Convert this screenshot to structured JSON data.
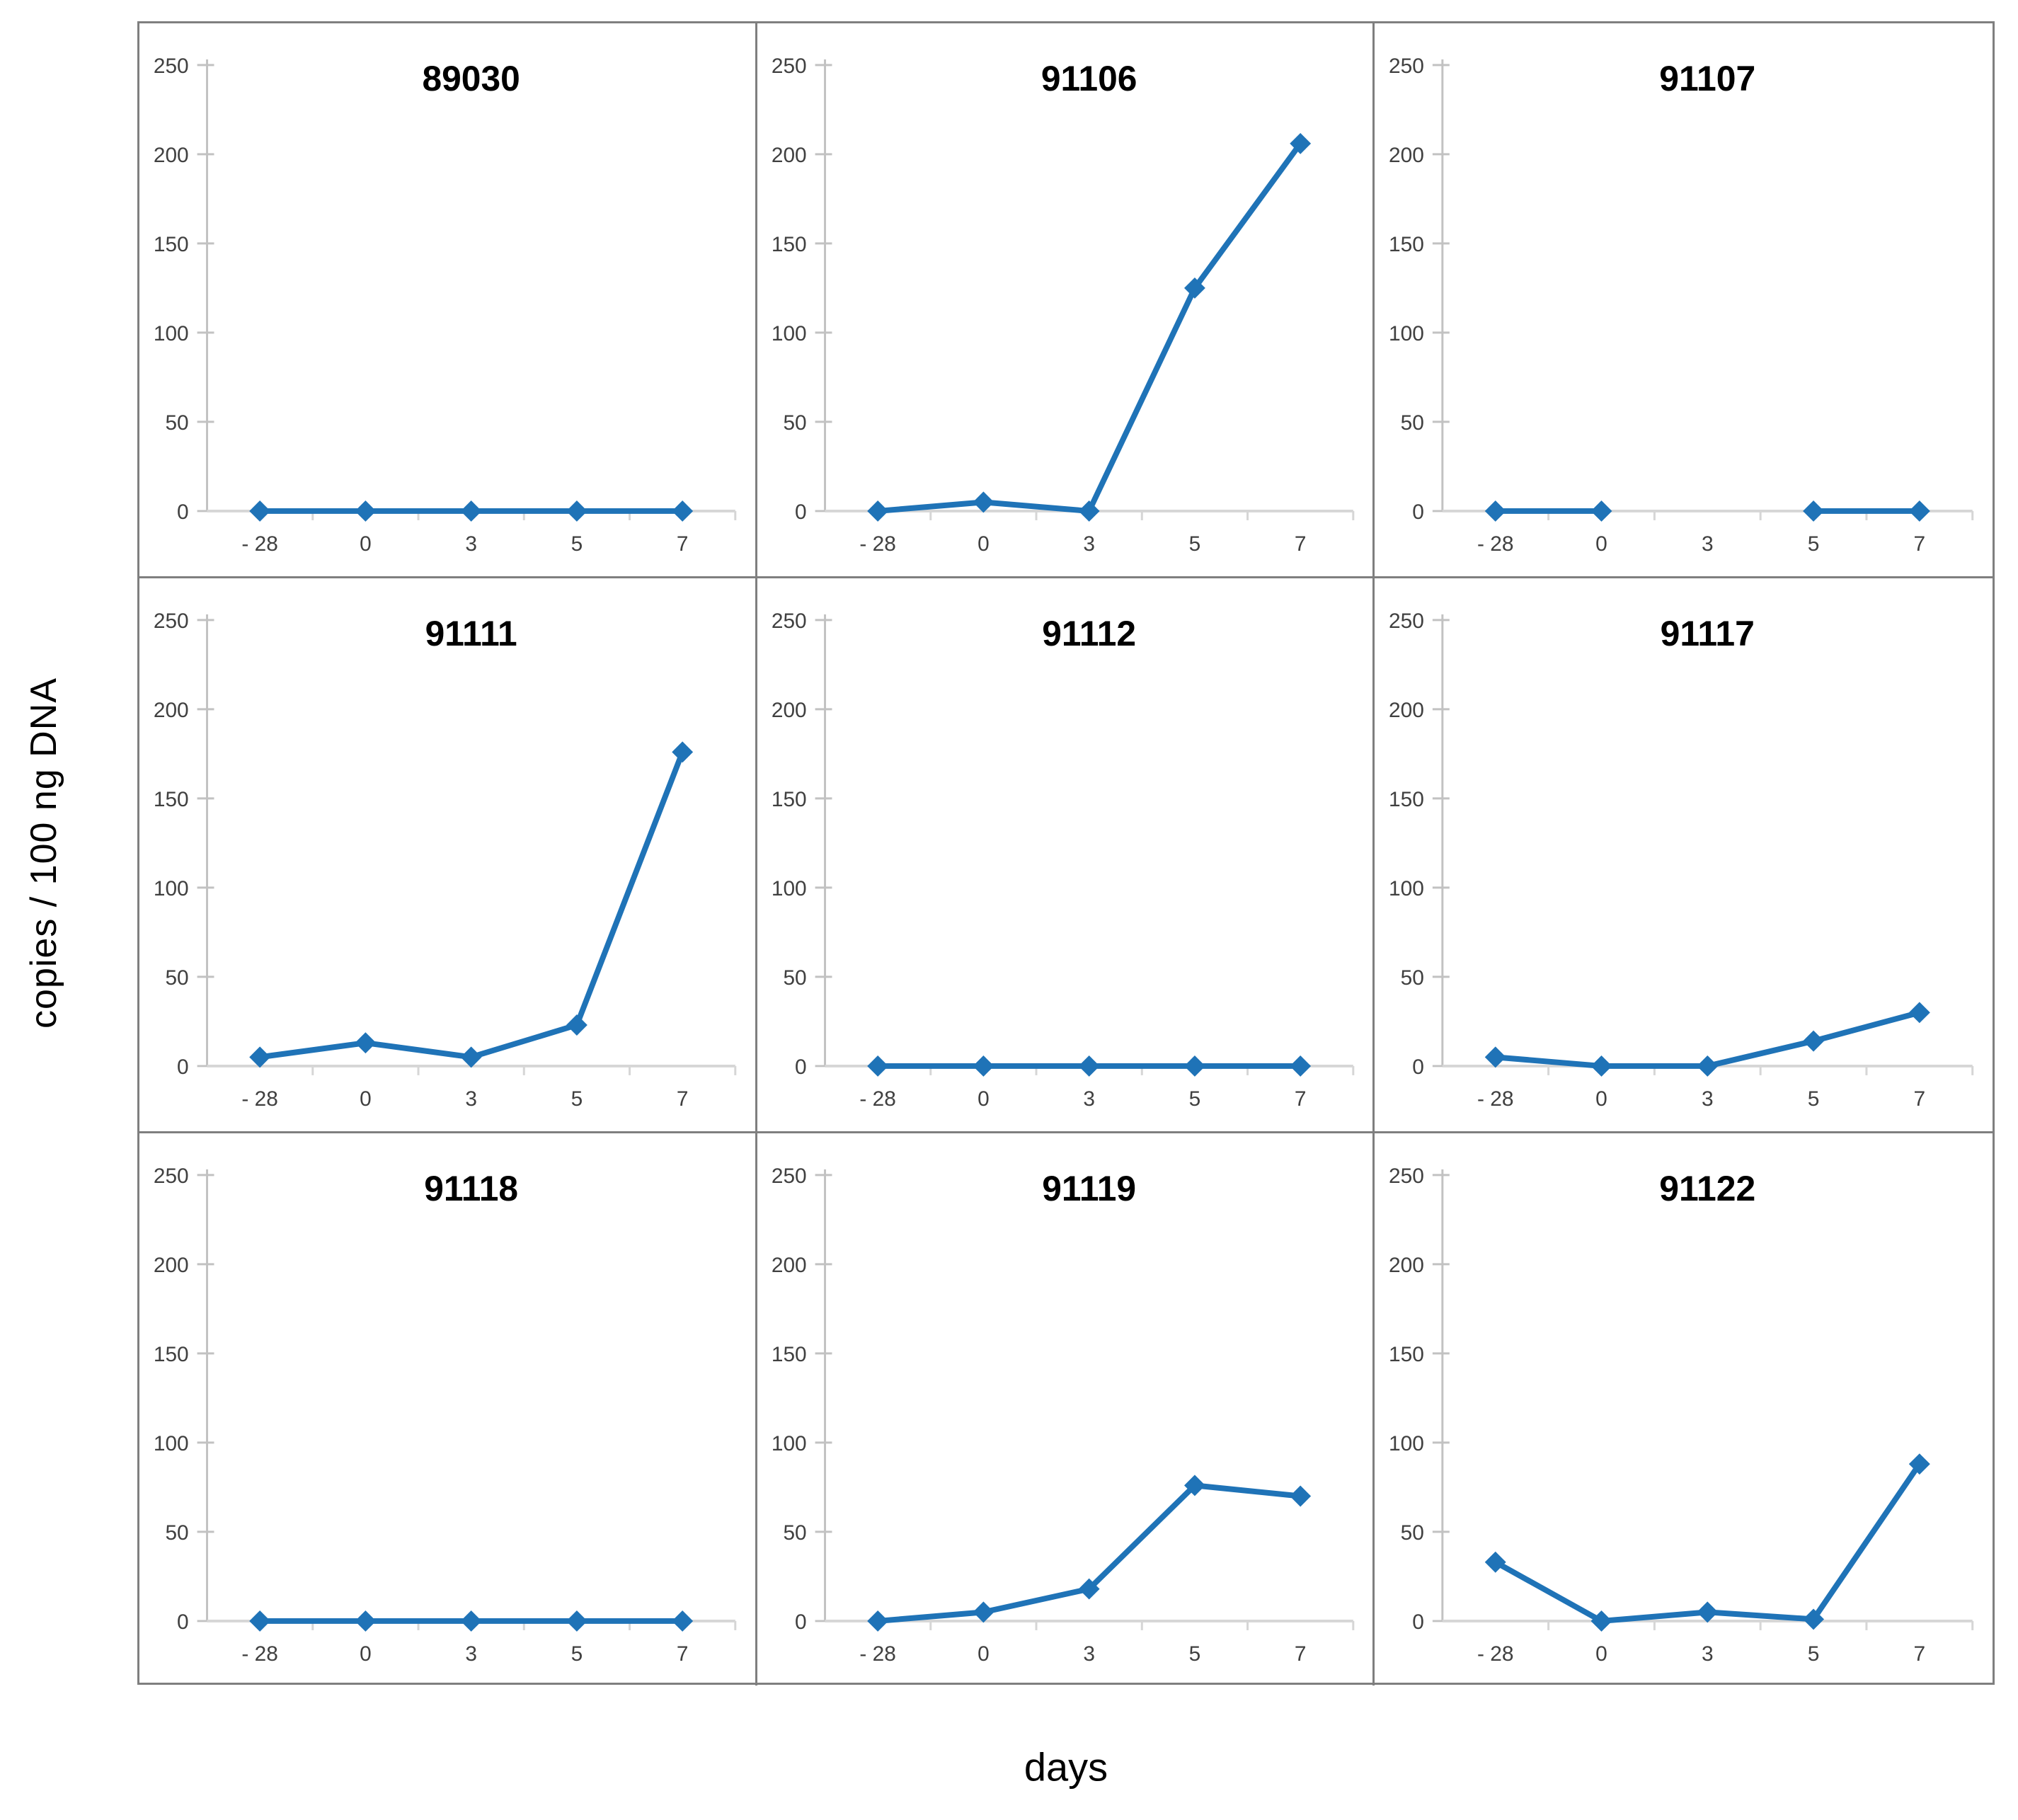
{
  "figure": {
    "y_axis_label": "copies / 100 ng DNA",
    "x_axis_label": "days",
    "accent_color": "#1f73b7",
    "border_color": "#7f7f7f",
    "axis_color": "#c2c2c2",
    "zero_line_color": "#d6d6d6",
    "tick_label_color": "#404040",
    "title_color": "#000000"
  },
  "chart_data": {
    "type": "line",
    "layout": "3x3 grid of small multiples",
    "xlabel": "days",
    "ylabel": "copies / 100 ng DNA",
    "x_categories": [
      "- 28",
      "0",
      "3",
      "5",
      "7"
    ],
    "ylim": [
      0,
      250
    ],
    "yticks": [
      0,
      50,
      100,
      150,
      200,
      250
    ],
    "marker": "diamond",
    "line_color": "#1f73b7",
    "grid_lines": "off",
    "charts": [
      {
        "title": "89030",
        "values": [
          0,
          0,
          0,
          0,
          0
        ]
      },
      {
        "title": "91106",
        "values": [
          0,
          5,
          0,
          125,
          206
        ]
      },
      {
        "title": "91107",
        "values": [
          0,
          0,
          null,
          0,
          0
        ]
      },
      {
        "title": "91111",
        "values": [
          5,
          13,
          5,
          23,
          176
        ]
      },
      {
        "title": "91112",
        "values": [
          0,
          0,
          0,
          0,
          0
        ]
      },
      {
        "title": "91117",
        "values": [
          5,
          0,
          0,
          14,
          30
        ]
      },
      {
        "title": "91118",
        "values": [
          0,
          0,
          0,
          0,
          0
        ]
      },
      {
        "title": "91119",
        "values": [
          0,
          5,
          18,
          76,
          70
        ]
      },
      {
        "title": "91122",
        "values": [
          33,
          0,
          5,
          1,
          88
        ]
      }
    ]
  }
}
